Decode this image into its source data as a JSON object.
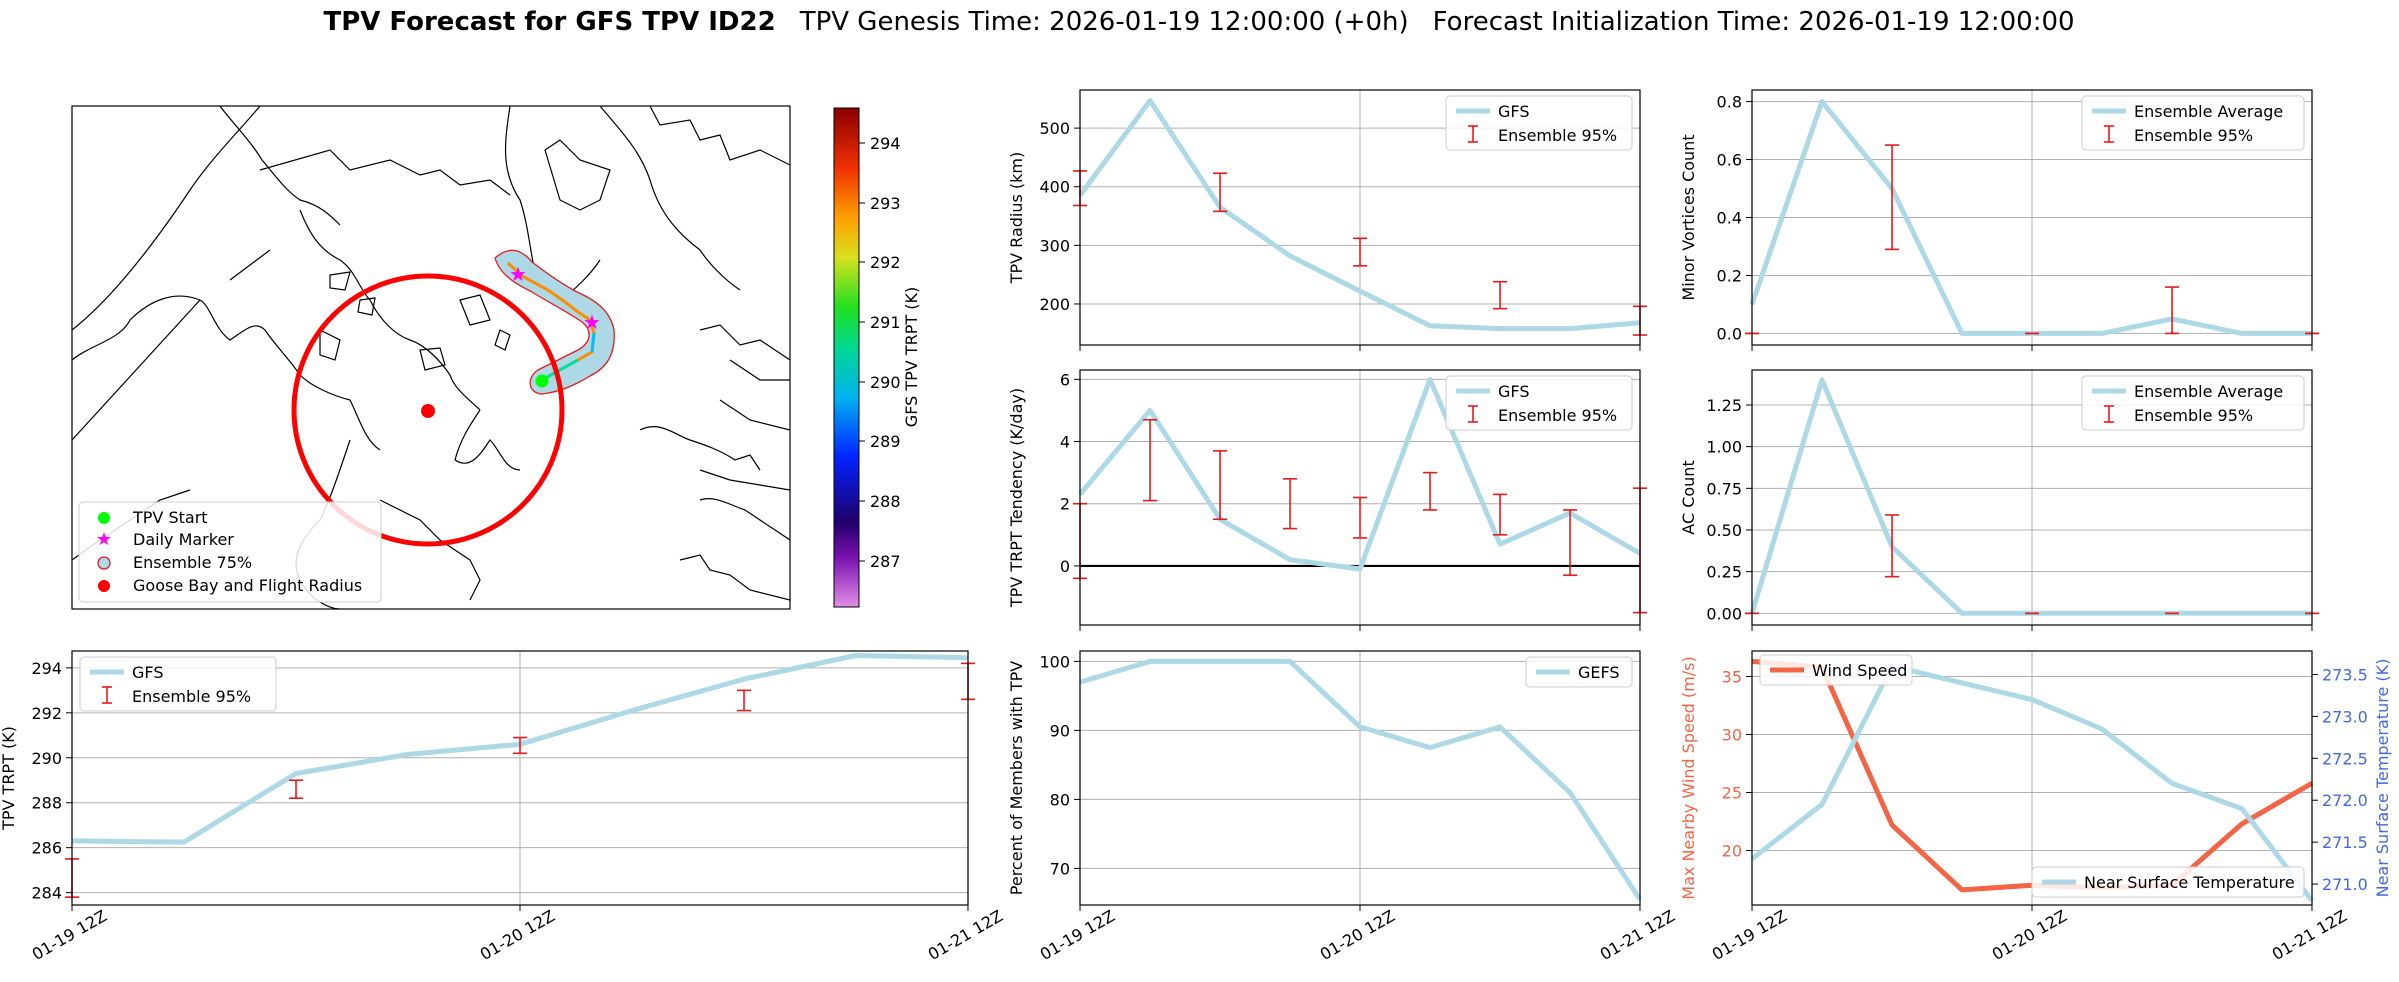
{
  "header": {
    "title_bold": "TPV Forecast for GFS TPV ID22",
    "genesis": "TPV Genesis Time: 2026-01-19 12:00:00 (+0h)",
    "init": "Forecast Initialization Time: 2026-01-19 12:00:00"
  },
  "colors": {
    "series": "#add8e6",
    "error": "#e41a1c",
    "wind": "#f26545",
    "temp_axis": "#4169e1",
    "ring": "#ff0000"
  },
  "map": {
    "colorbar_label": "GFS TPV TRPT (K)",
    "colorbar_ticks": [
      "294",
      "293",
      "292",
      "291",
      "290",
      "289",
      "288",
      "287"
    ],
    "legend": [
      "TPV Start",
      "Daily Marker",
      "Ensemble 75%",
      "Goose Bay and Flight Radius"
    ]
  },
  "chart_data": [
    {
      "id": "radius",
      "type": "line",
      "ylabel": "TPV Radius (km)",
      "ylim": [
        130,
        565
      ],
      "yticks": [
        200,
        300,
        400,
        500
      ],
      "x": [
        0,
        3,
        6,
        9,
        12,
        15,
        18,
        21,
        24
      ],
      "series": [
        {
          "name": "GFS",
          "values": [
            385,
            547,
            365,
            282,
            222,
            163,
            158,
            158,
            168
          ]
        }
      ],
      "errorbars": [
        {
          "x": 0,
          "lo": 368,
          "hi": 427
        },
        {
          "x": 6,
          "lo": 358,
          "hi": 423
        },
        {
          "x": 12,
          "lo": 265,
          "hi": 312
        },
        {
          "x": 18,
          "lo": 192,
          "hi": 238
        },
        {
          "x": 24,
          "lo": 147,
          "hi": 196
        }
      ],
      "legend": [
        "GFS",
        "Ensemble 95%"
      ],
      "legend_position": "top-right"
    },
    {
      "id": "minor",
      "type": "line",
      "ylabel": "Minor Vortices Count",
      "ylim": [
        -0.04,
        0.84
      ],
      "yticks": [
        "0.0",
        "0.2",
        "0.4",
        "0.6",
        "0.8"
      ],
      "x": [
        0,
        3,
        6,
        9,
        12,
        15,
        18,
        21,
        24
      ],
      "series": [
        {
          "name": "Ensemble Average",
          "values": [
            0.1,
            0.8,
            0.5,
            0.0,
            0.0,
            0.0,
            0.05,
            0.0,
            0.0
          ]
        }
      ],
      "errorbars": [
        {
          "x": 0,
          "lo": 0.0,
          "hi": 0.0
        },
        {
          "x": 6,
          "lo": 0.29,
          "hi": 0.65
        },
        {
          "x": 12,
          "lo": 0.0,
          "hi": 0.0
        },
        {
          "x": 18,
          "lo": 0.0,
          "hi": 0.16
        },
        {
          "x": 24,
          "lo": 0.0,
          "hi": 0.0
        }
      ],
      "legend": [
        "Ensemble Average",
        "Ensemble 95%"
      ],
      "legend_position": "top-right"
    },
    {
      "id": "tend",
      "type": "line",
      "ylabel": "TPV TRPT Tendency (K/day)",
      "ylim": [
        -1.9,
        6.3
      ],
      "yticks": [
        0,
        2,
        4,
        6
      ],
      "x": [
        0,
        3,
        6,
        9,
        12,
        15,
        18,
        21,
        24
      ],
      "series": [
        {
          "name": "GFS",
          "values": [
            2.3,
            5.0,
            1.5,
            0.2,
            -0.1,
            6.0,
            0.7,
            1.7,
            0.4
          ]
        }
      ],
      "errorbars": [
        {
          "x": 0,
          "lo": -0.4,
          "hi": 2.0
        },
        {
          "x": 3,
          "lo": 2.1,
          "hi": 4.7
        },
        {
          "x": 6,
          "lo": 1.5,
          "hi": 3.7
        },
        {
          "x": 9,
          "lo": 1.2,
          "hi": 2.8
        },
        {
          "x": 12,
          "lo": 0.9,
          "hi": 2.2
        },
        {
          "x": 15,
          "lo": 1.8,
          "hi": 3.0
        },
        {
          "x": 18,
          "lo": 1.0,
          "hi": 2.3
        },
        {
          "x": 21,
          "lo": -0.3,
          "hi": 1.8
        },
        {
          "x": 24,
          "lo": -1.5,
          "hi": 2.5
        }
      ],
      "legend": [
        "GFS",
        "Ensemble 95%"
      ],
      "legend_position": "top-right",
      "zero_line": true
    },
    {
      "id": "ac",
      "type": "line",
      "ylabel": "AC Count",
      "ylim": [
        -0.07,
        1.46
      ],
      "yticks": [
        "0.00",
        "0.25",
        "0.50",
        "0.75",
        "1.00",
        "1.25"
      ],
      "x": [
        0,
        3,
        6,
        9,
        12,
        15,
        18,
        21,
        24
      ],
      "series": [
        {
          "name": "Ensemble Average",
          "values": [
            0.0,
            1.4,
            0.4,
            0.0,
            0.0,
            0.0,
            0.0,
            0.0,
            0.0
          ]
        }
      ],
      "errorbars": [
        {
          "x": 0,
          "lo": 0.0,
          "hi": 0.0
        },
        {
          "x": 6,
          "lo": 0.22,
          "hi": 0.59
        },
        {
          "x": 12,
          "lo": 0.0,
          "hi": 0.0
        },
        {
          "x": 18,
          "lo": 0.0,
          "hi": 0.0
        },
        {
          "x": 24,
          "lo": 0.0,
          "hi": 0.0
        }
      ],
      "legend": [
        "Ensemble Average",
        "Ensemble 95%"
      ],
      "legend_position": "top-right"
    },
    {
      "id": "trpt",
      "type": "line",
      "ylabel": "TPV TRPT (K)",
      "ylim": [
        283.45,
        294.75
      ],
      "yticks": [
        284,
        286,
        288,
        290,
        292,
        294
      ],
      "x": [
        0,
        3,
        6,
        9,
        12,
        15,
        18,
        21,
        24
      ],
      "xticks": [
        "01-19 12Z",
        "01-20 12Z",
        "01-21 12Z"
      ],
      "series": [
        {
          "name": "GFS",
          "values": [
            286.3,
            286.25,
            289.3,
            290.15,
            290.6,
            292.1,
            293.5,
            294.55,
            294.45
          ]
        }
      ],
      "errorbars": [
        {
          "x": 0,
          "lo": 283.8,
          "hi": 285.5
        },
        {
          "x": 6,
          "lo": 288.2,
          "hi": 289.0
        },
        {
          "x": 12,
          "lo": 290.2,
          "hi": 290.9
        },
        {
          "x": 18,
          "lo": 292.1,
          "hi": 293.0
        },
        {
          "x": 24,
          "lo": 292.6,
          "hi": 294.2
        }
      ],
      "legend": [
        "GFS",
        "Ensemble 95%"
      ],
      "legend_position": "top-left"
    },
    {
      "id": "members",
      "type": "line",
      "ylabel": "Percent of Members with TPV",
      "ylim": [
        64.7,
        101.5
      ],
      "yticks": [
        70,
        80,
        90,
        100
      ],
      "x": [
        0,
        3,
        6,
        9,
        12,
        15,
        18,
        21,
        24
      ],
      "xticks": [
        "01-19 12Z",
        "01-20 12Z",
        "01-21 12Z"
      ],
      "series": [
        {
          "name": "GEFS",
          "values": [
            97,
            100,
            100,
            100,
            90.5,
            87.5,
            90.5,
            81,
            65.5
          ]
        }
      ],
      "legend": [
        "GEFS"
      ],
      "legend_position": "top-right"
    },
    {
      "id": "wind",
      "type": "line",
      "ylabel": "Max Nearby Wind Speed (m/s)",
      "y2label": "Near Surface Temperature (K)",
      "ylim": [
        15.3,
        37.2
      ],
      "y2lim": [
        270.75,
        273.78
      ],
      "yticks": [
        20,
        25,
        30,
        35
      ],
      "y2ticks": [
        "271.0",
        "271.5",
        "272.0",
        "272.5",
        "273.0",
        "273.5"
      ],
      "x": [
        0,
        3,
        6,
        9,
        12,
        15,
        18,
        21,
        24
      ],
      "xticks": [
        "01-19 12Z",
        "01-20 12Z",
        "01-21 12Z"
      ],
      "series": [
        {
          "name": "Wind Speed",
          "axis": "left",
          "values": [
            36.3,
            35.8,
            22.2,
            16.6,
            17.0,
            16.8,
            17.0,
            22.3,
            25.8
          ]
        },
        {
          "name": "Near Surface Temperature",
          "axis": "right",
          "values": [
            271.3,
            271.95,
            273.6,
            273.4,
            273.2,
            272.85,
            272.2,
            271.9,
            270.8
          ]
        }
      ],
      "legend": [
        "Wind Speed",
        "Near Surface Temperature"
      ]
    }
  ]
}
